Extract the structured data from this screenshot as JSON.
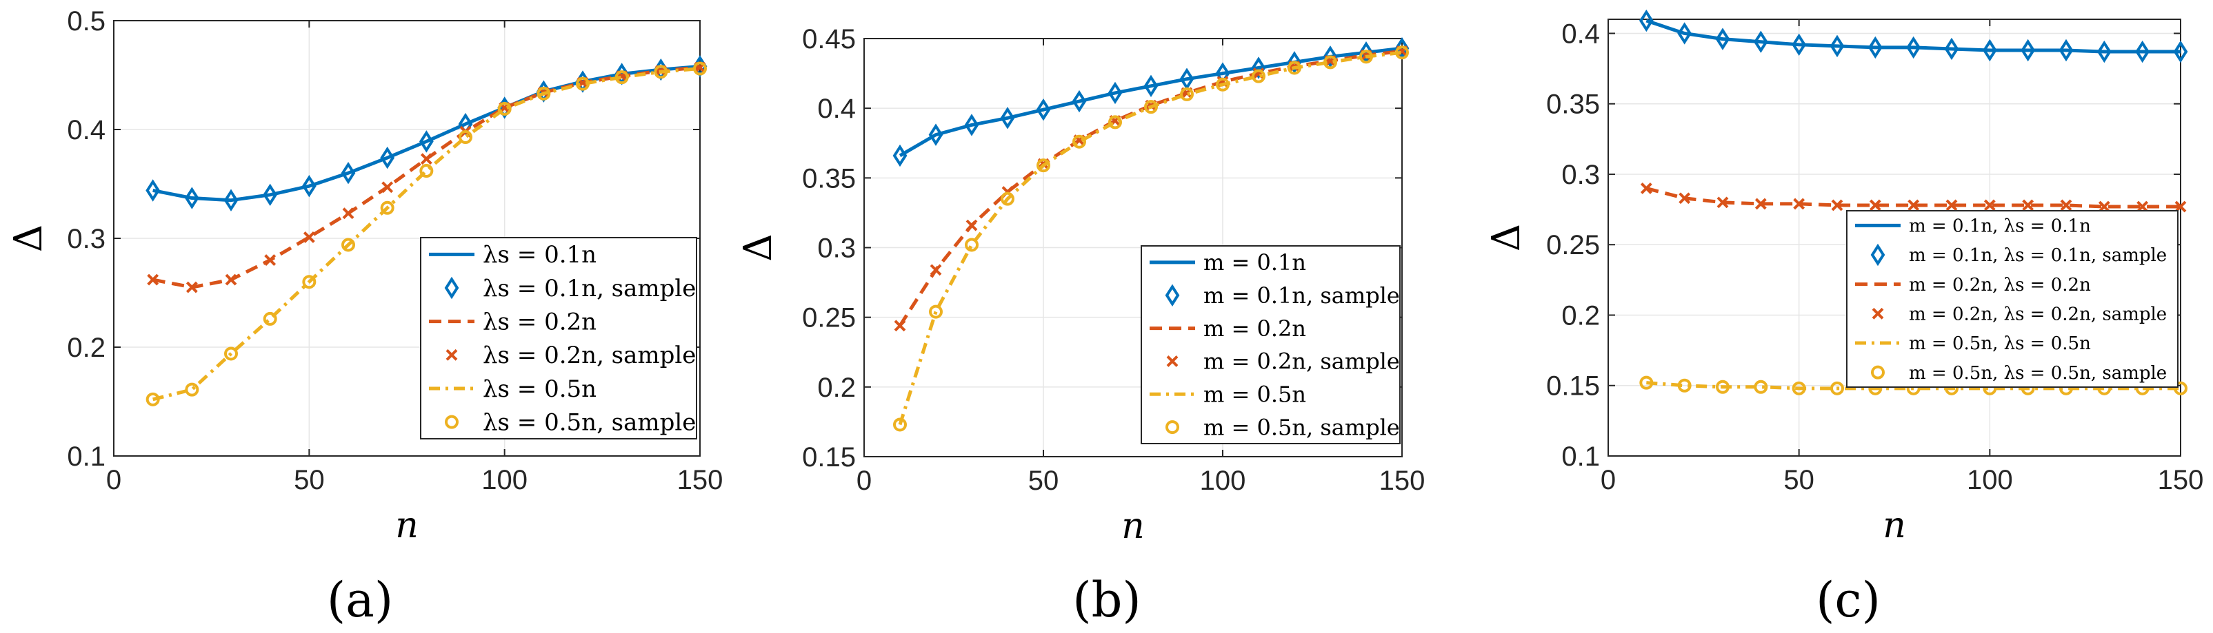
{
  "colors": {
    "blue": "#0072BD",
    "orange": "#D95319",
    "yellow": "#EDB120"
  },
  "chart_data": [
    {
      "type": "line",
      "panel_label": "(a)",
      "xlabel": "n",
      "ylabel": "Δ",
      "xlim": [
        0,
        150
      ],
      "ylim": [
        0.1,
        0.5
      ],
      "xticks": [
        0,
        50,
        100,
        150
      ],
      "yticks": [
        0.1,
        0.2,
        0.3,
        0.4,
        0.5
      ],
      "ytick_labels": [
        "0.1",
        "0.2",
        "0.3",
        "0.4",
        "0.5"
      ],
      "grid": true,
      "legend_position": "right",
      "x": [
        10,
        20,
        30,
        40,
        50,
        60,
        70,
        80,
        90,
        100,
        110,
        120,
        130,
        140,
        150
      ],
      "series": [
        {
          "name": "λs = 0.1n",
          "sample_name": "λs = 0.1n, sample",
          "color": "#0072BD",
          "style": "solid",
          "marker": "diamond",
          "values": [
            0.344,
            0.337,
            0.335,
            0.34,
            0.348,
            0.36,
            0.374,
            0.389,
            0.405,
            0.42,
            0.435,
            0.444,
            0.451,
            0.455,
            0.458
          ]
        },
        {
          "name": "λs = 0.2n",
          "sample_name": "λs = 0.2n, sample",
          "color": "#D95319",
          "style": "dashed",
          "marker": "x",
          "values": [
            0.262,
            0.255,
            0.262,
            0.28,
            0.301,
            0.323,
            0.347,
            0.373,
            0.398,
            0.42,
            0.434,
            0.443,
            0.449,
            0.454,
            0.457
          ]
        },
        {
          "name": "λs = 0.5n",
          "sample_name": "λs = 0.5n, sample",
          "color": "#EDB120",
          "style": "dashdot",
          "marker": "circle",
          "values": [
            0.152,
            0.161,
            0.194,
            0.226,
            0.26,
            0.294,
            0.328,
            0.362,
            0.393,
            0.419,
            0.433,
            0.442,
            0.448,
            0.453,
            0.456
          ]
        }
      ]
    },
    {
      "type": "line",
      "panel_label": "(b)",
      "xlabel": "n",
      "ylabel": "Δ",
      "xlim": [
        0,
        150
      ],
      "ylim": [
        0.15,
        0.45
      ],
      "xticks": [
        0,
        50,
        100,
        150
      ],
      "yticks": [
        0.15,
        0.2,
        0.25,
        0.3,
        0.35,
        0.4,
        0.45
      ],
      "ytick_labels": [
        "0.15",
        "0.2",
        "0.25",
        "0.3",
        "0.35",
        "0.4",
        "0.45"
      ],
      "grid": true,
      "legend_position": "right",
      "x": [
        10,
        20,
        30,
        40,
        50,
        60,
        70,
        80,
        90,
        100,
        110,
        120,
        130,
        140,
        150
      ],
      "series": [
        {
          "name": "m = 0.1n",
          "sample_name": "m = 0.1n, sample",
          "color": "#0072BD",
          "style": "solid",
          "marker": "diamond",
          "values": [
            0.366,
            0.381,
            0.388,
            0.393,
            0.399,
            0.405,
            0.411,
            0.416,
            0.421,
            0.425,
            0.429,
            0.433,
            0.437,
            0.44,
            0.443
          ]
        },
        {
          "name": "m = 0.2n",
          "sample_name": "m = 0.2n, sample",
          "color": "#D95319",
          "style": "dashed",
          "marker": "x",
          "values": [
            0.244,
            0.284,
            0.316,
            0.34,
            0.36,
            0.377,
            0.391,
            0.402,
            0.411,
            0.419,
            0.425,
            0.43,
            0.434,
            0.438,
            0.441
          ]
        },
        {
          "name": "m = 0.5n",
          "sample_name": "m = 0.5n, sample",
          "color": "#EDB120",
          "style": "dashdot",
          "marker": "circle",
          "values": [
            0.173,
            0.254,
            0.302,
            0.335,
            0.359,
            0.376,
            0.39,
            0.401,
            0.41,
            0.417,
            0.423,
            0.429,
            0.433,
            0.437,
            0.44
          ]
        }
      ]
    },
    {
      "type": "line",
      "panel_label": "(c)",
      "xlabel": "n",
      "ylabel": "Δ",
      "xlim": [
        0,
        150
      ],
      "ylim": [
        0.1,
        0.41
      ],
      "xticks": [
        0,
        50,
        100,
        150
      ],
      "yticks": [
        0.1,
        0.15,
        0.2,
        0.25,
        0.3,
        0.35,
        0.4
      ],
      "ytick_labels": [
        "0.1",
        "0.15",
        "0.2",
        "0.25",
        "0.3",
        "0.35",
        "0.4"
      ],
      "grid": true,
      "legend_position": "right",
      "x": [
        10,
        20,
        30,
        40,
        50,
        60,
        70,
        80,
        90,
        100,
        110,
        120,
        130,
        140,
        150
      ],
      "series": [
        {
          "name": "m = 0.1n, λs = 0.1n",
          "sample_name": "m = 0.1n, λs = 0.1n, sample",
          "color": "#0072BD",
          "style": "solid",
          "marker": "diamond",
          "values": [
            0.409,
            0.4,
            0.396,
            0.394,
            0.392,
            0.391,
            0.39,
            0.39,
            0.389,
            0.388,
            0.388,
            0.388,
            0.387,
            0.387,
            0.387
          ]
        },
        {
          "name": "m = 0.2n, λs = 0.2n",
          "sample_name": "m = 0.2n, λs = 0.2n, sample",
          "color": "#D95319",
          "style": "dashed",
          "marker": "x",
          "values": [
            0.29,
            0.283,
            0.28,
            0.279,
            0.279,
            0.278,
            0.278,
            0.278,
            0.278,
            0.278,
            0.278,
            0.278,
            0.277,
            0.277,
            0.277
          ]
        },
        {
          "name": "m = 0.5n, λs = 0.5n",
          "sample_name": "m = 0.5n, λs = 0.5n, sample",
          "color": "#EDB120",
          "style": "dashdot",
          "marker": "circle",
          "values": [
            0.152,
            0.15,
            0.149,
            0.149,
            0.148,
            0.148,
            0.148,
            0.148,
            0.148,
            0.148,
            0.148,
            0.148,
            0.148,
            0.148,
            0.148
          ]
        }
      ]
    }
  ]
}
